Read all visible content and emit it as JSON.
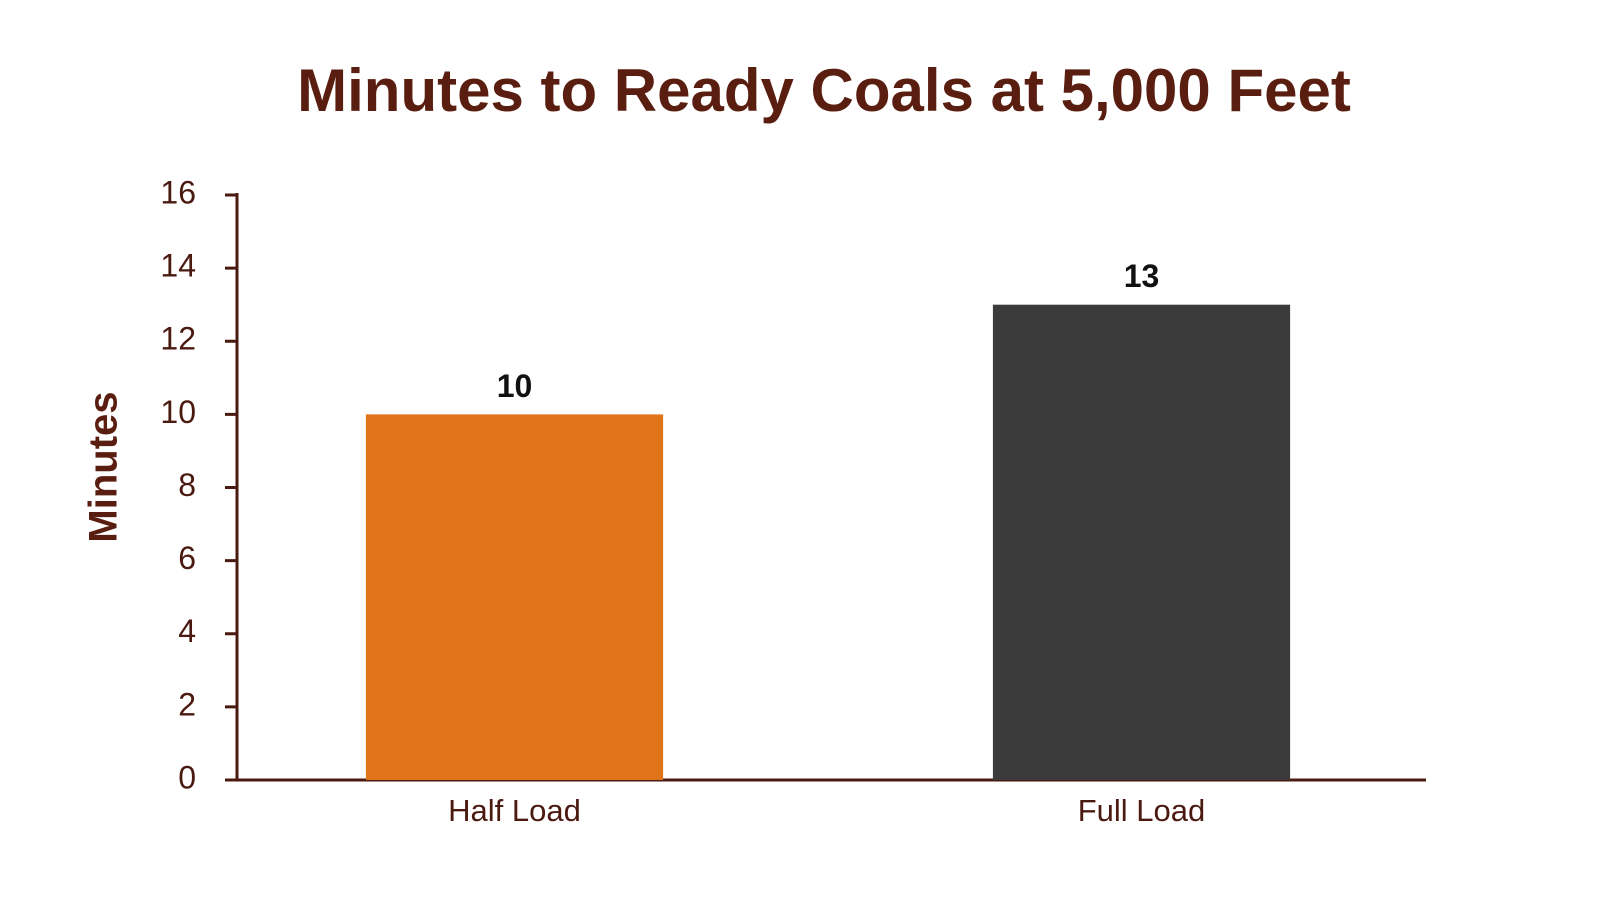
{
  "chart_data": {
    "type": "bar",
    "title": "Minutes to Ready Coals at 5,000 Feet",
    "y_label": "Minutes",
    "categories": [
      "Half Load",
      "Full Load"
    ],
    "values": [
      10,
      13
    ],
    "colors": [
      "#e07418",
      "#3b3b3b"
    ],
    "ylim": [
      0,
      16
    ],
    "yticks": [
      0,
      2,
      4,
      6,
      8,
      10,
      12,
      14,
      16
    ]
  }
}
